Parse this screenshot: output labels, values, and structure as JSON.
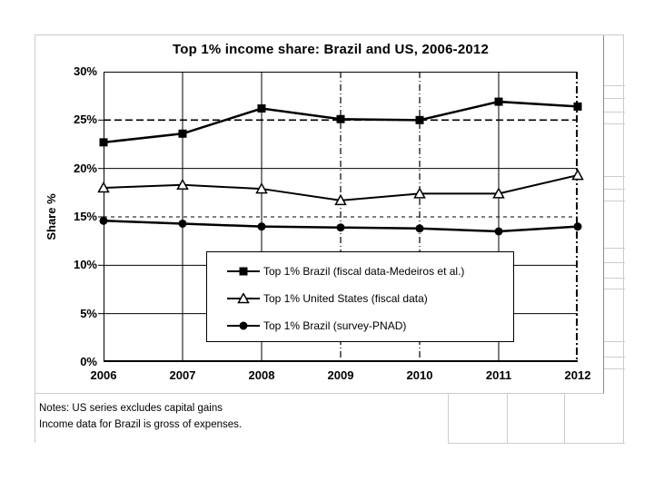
{
  "chart_data": {
    "type": "line",
    "title": "Top 1% income share: Brazil and US, 2006-2012",
    "xlabel": "",
    "ylabel": "Share %",
    "categories": [
      "2006",
      "2007",
      "2008",
      "2009",
      "2010",
      "2011",
      "2012"
    ],
    "series": [
      {
        "name": "Top 1% Brazil (fiscal data-Medeiros et al.)",
        "marker": "filled-square",
        "line_width": 2.5,
        "values": [
          22.7,
          23.6,
          26.2,
          25.1,
          25.0,
          26.9,
          26.4
        ]
      },
      {
        "name": "Top 1% United States (fiscal data)",
        "marker": "open-triangle",
        "line_width": 2,
        "values": [
          18.0,
          18.3,
          17.9,
          16.7,
          17.4,
          17.4,
          19.3
        ]
      },
      {
        "name": "Top 1% Brazil (survey-PNAD)",
        "marker": "filled-circle",
        "line_width": 2.5,
        "values": [
          14.6,
          14.3,
          14.0,
          13.9,
          13.8,
          13.5,
          14.0
        ]
      }
    ],
    "ylim": [
      0,
      30
    ],
    "ytick_values": [
      30,
      25,
      20,
      15,
      10,
      5,
      0
    ],
    "ytick_labels": [
      "30%",
      "25%",
      "20%",
      "15%",
      "10%",
      "5%",
      "0%"
    ],
    "grid": "horizontal every 5%; lines at 25% and 15% dashed, others solid; vertical line at each year, 2009/2010 dash-dot; bold dash-dot right border",
    "legend_position": "boxed, lower-center of plot",
    "gridlines": {
      "horizontal": [
        {
          "value": 25,
          "width": 1.6,
          "dash": "8,4"
        },
        {
          "value": 20,
          "width": 1,
          "dash": ""
        },
        {
          "value": 15,
          "width": 1,
          "dash": "4,4"
        },
        {
          "value": 10,
          "width": 1,
          "dash": ""
        },
        {
          "value": 5,
          "width": 1,
          "dash": ""
        }
      ],
      "vertical": [
        {
          "index": 1,
          "width": 1,
          "dash": ""
        },
        {
          "index": 2,
          "width": 1,
          "dash": ""
        },
        {
          "index": 3,
          "width": 1.2,
          "dash": "7,3,1,3"
        },
        {
          "index": 4,
          "width": 1.2,
          "dash": "7,3,1,3"
        },
        {
          "index": 5,
          "width": 1,
          "dash": ""
        }
      ]
    }
  },
  "notes": {
    "line1": "Notes: US series excludes capital gains",
    "line2": "Income data for Brazil is gross of expenses."
  },
  "colors": {
    "ink": "#000000",
    "chart_frame": "#c6ccd2",
    "chart_right_edge": "#878d93",
    "sheet_grid": "#c9ced4"
  }
}
